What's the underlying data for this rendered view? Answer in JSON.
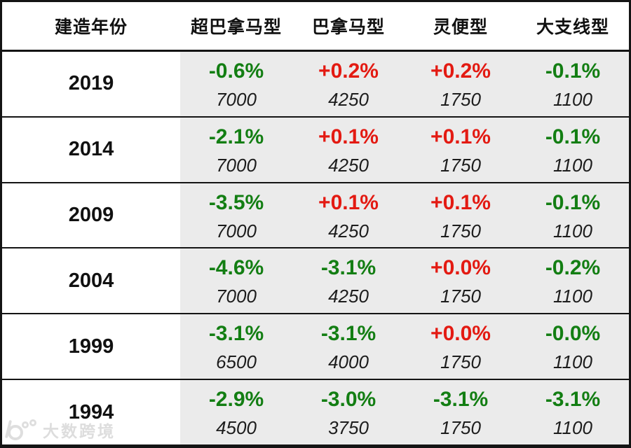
{
  "header": {
    "columns": [
      "建造年份",
      "超巴拿马型",
      "巴拿马型",
      "灵便型",
      "大支线型"
    ]
  },
  "rows": [
    {
      "year": "2019",
      "cells": [
        {
          "pct": "-0.6%",
          "trend": "down",
          "value": "7000"
        },
        {
          "pct": "+0.2%",
          "trend": "up",
          "value": "4250"
        },
        {
          "pct": "+0.2%",
          "trend": "up",
          "value": "1750"
        },
        {
          "pct": "-0.1%",
          "trend": "down",
          "value": "1100"
        }
      ]
    },
    {
      "year": "2014",
      "cells": [
        {
          "pct": "-2.1%",
          "trend": "down",
          "value": "7000"
        },
        {
          "pct": "+0.1%",
          "trend": "up",
          "value": "4250"
        },
        {
          "pct": "+0.1%",
          "trend": "up",
          "value": "1750"
        },
        {
          "pct": "-0.1%",
          "trend": "down",
          "value": "1100"
        }
      ]
    },
    {
      "year": "2009",
      "cells": [
        {
          "pct": "-3.5%",
          "trend": "down",
          "value": "7000"
        },
        {
          "pct": "+0.1%",
          "trend": "up",
          "value": "4250"
        },
        {
          "pct": "+0.1%",
          "trend": "up",
          "value": "1750"
        },
        {
          "pct": "-0.1%",
          "trend": "down",
          "value": "1100"
        }
      ]
    },
    {
      "year": "2004",
      "cells": [
        {
          "pct": "-4.6%",
          "trend": "down",
          "value": "7000"
        },
        {
          "pct": "-3.1%",
          "trend": "down",
          "value": "4250"
        },
        {
          "pct": "+0.0%",
          "trend": "up",
          "value": "1750"
        },
        {
          "pct": "-0.2%",
          "trend": "down",
          "value": "1100"
        }
      ]
    },
    {
      "year": "1999",
      "cells": [
        {
          "pct": "-3.1%",
          "trend": "down",
          "value": "6500"
        },
        {
          "pct": "-3.1%",
          "trend": "down",
          "value": "4000"
        },
        {
          "pct": "+0.0%",
          "trend": "up",
          "value": "1750"
        },
        {
          "pct": "-0.0%",
          "trend": "down",
          "value": "1100"
        }
      ]
    },
    {
      "year": "1994",
      "cells": [
        {
          "pct": "-2.9%",
          "trend": "down",
          "value": "4500"
        },
        {
          "pct": "-3.0%",
          "trend": "down",
          "value": "3750"
        },
        {
          "pct": "-3.1%",
          "trend": "down",
          "value": "1750"
        },
        {
          "pct": "-3.1%",
          "trend": "down",
          "value": "1100"
        }
      ]
    }
  ],
  "watermark": {
    "text": "大数跨境"
  },
  "colors": {
    "negative_green": "#137e13",
    "positive_red": "#e31a12",
    "data_cell_bg": "#ebebeb",
    "border": "#141414",
    "watermark_gray": "#c9c9c9"
  },
  "chart_data": {
    "type": "table",
    "columns": [
      "建造年份",
      "超巴拿马型",
      "巴拿马型",
      "灵便型",
      "大支线型"
    ],
    "years": [
      "2019",
      "2014",
      "2009",
      "2004",
      "1999",
      "1994"
    ],
    "pct_change_rows": [
      [
        "-0.6%",
        "+0.2%",
        "+0.2%",
        "-0.1%"
      ],
      [
        "-2.1%",
        "+0.1%",
        "+0.1%",
        "-0.1%"
      ],
      [
        "-3.5%",
        "+0.1%",
        "+0.1%",
        "-0.1%"
      ],
      [
        "-4.6%",
        "-3.1%",
        "+0.0%",
        "-0.2%"
      ],
      [
        "-3.1%",
        "-3.1%",
        "+0.0%",
        "-0.0%"
      ],
      [
        "-2.9%",
        "-3.0%",
        "-3.1%",
        "-3.1%"
      ]
    ],
    "count_rows": [
      [
        7000,
        4250,
        1750,
        1100
      ],
      [
        7000,
        4250,
        1750,
        1100
      ],
      [
        7000,
        4250,
        1750,
        1100
      ],
      [
        7000,
        4250,
        1750,
        1100
      ],
      [
        6500,
        4000,
        1750,
        1100
      ],
      [
        4500,
        3750,
        1750,
        1100
      ]
    ],
    "legend": "green = negative change, red = positive/zero-plus change; italic number below = value",
    "grid": "horizontal black rules between rows, outer black frame"
  }
}
